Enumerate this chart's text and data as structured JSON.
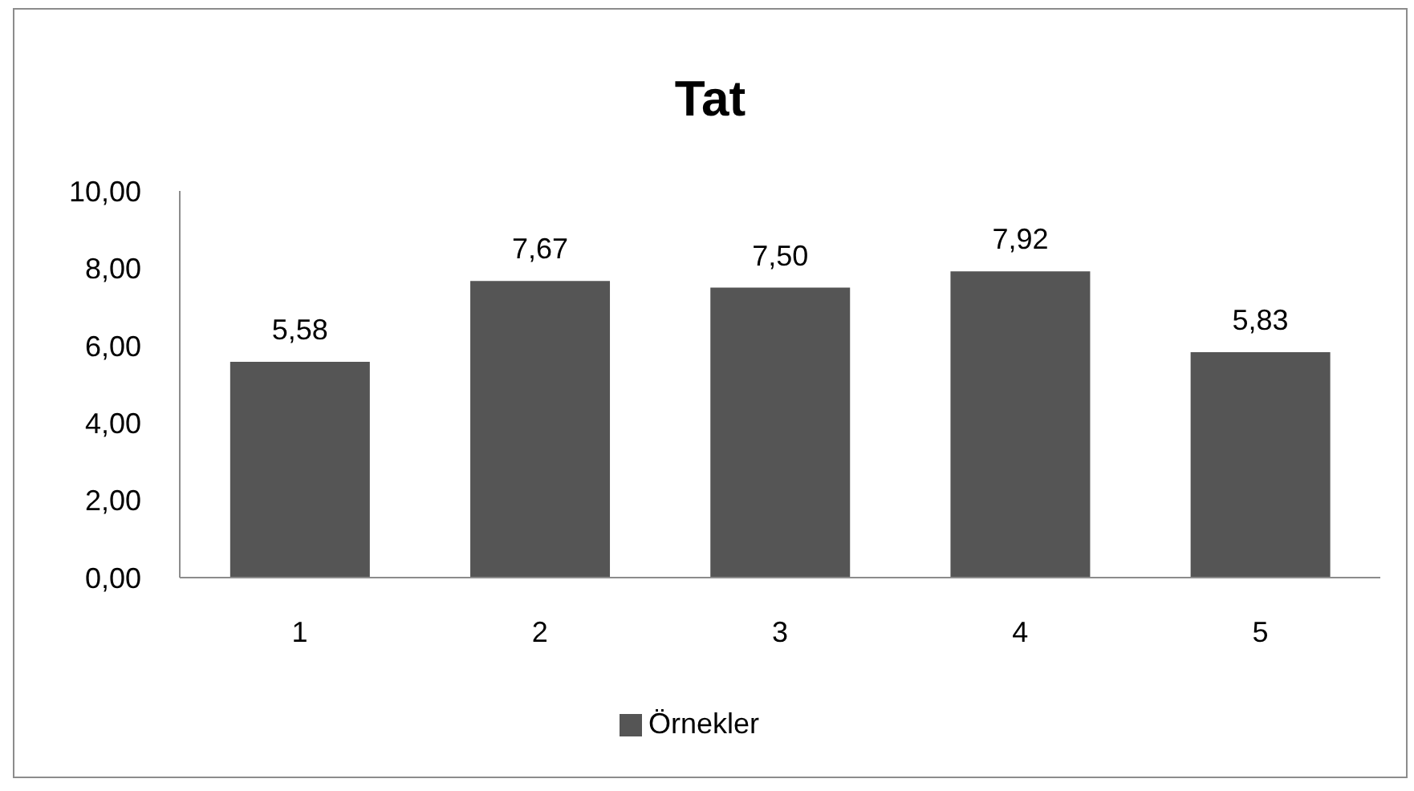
{
  "chart_data": {
    "type": "bar",
    "title": "Tat",
    "categories": [
      "1",
      "2",
      "3",
      "4",
      "5"
    ],
    "series": [
      {
        "name": "Örnekler",
        "color": "#555555",
        "values": [
          5.58,
          7.67,
          7.5,
          7.92,
          5.83
        ],
        "value_labels": [
          "5,58",
          "7,67",
          "7,50",
          "7,92",
          "5,83"
        ]
      }
    ],
    "ylim": [
      0,
      10
    ],
    "yticks": [
      {
        "value": 0,
        "label": "0,00"
      },
      {
        "value": 2,
        "label": "2,00"
      },
      {
        "value": 4,
        "label": "4,00"
      },
      {
        "value": 6,
        "label": "6,00"
      },
      {
        "value": 8,
        "label": "8,00"
      },
      {
        "value": 10,
        "label": "10,00"
      }
    ],
    "legend": "bottom"
  }
}
